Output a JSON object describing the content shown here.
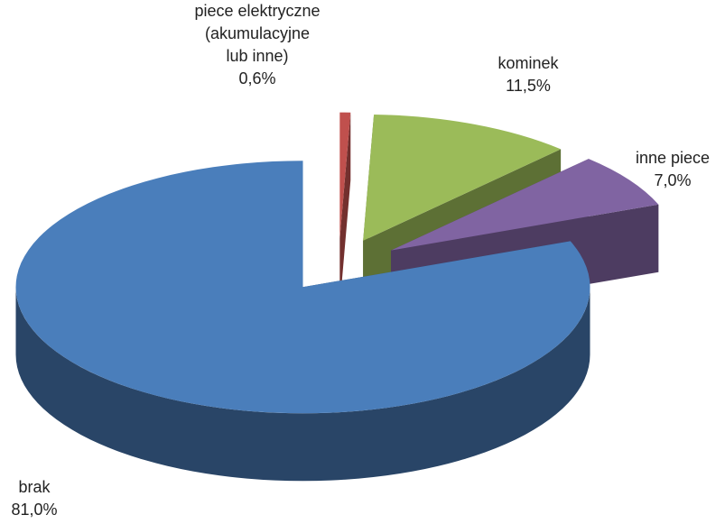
{
  "chart_data": {
    "type": "pie",
    "categories": [
      "piece elektryczne (akumulacyjne lub inne)",
      "kominek",
      "inne piece",
      "brak"
    ],
    "values": [
      0.6,
      11.5,
      7.0,
      81.0
    ],
    "value_labels": [
      "0,6%",
      "11,5%",
      "7,0%",
      "81,0%"
    ],
    "colors": [
      "#c0504d",
      "#9bbb59",
      "#8064a2",
      "#4a7ebb"
    ]
  }
}
